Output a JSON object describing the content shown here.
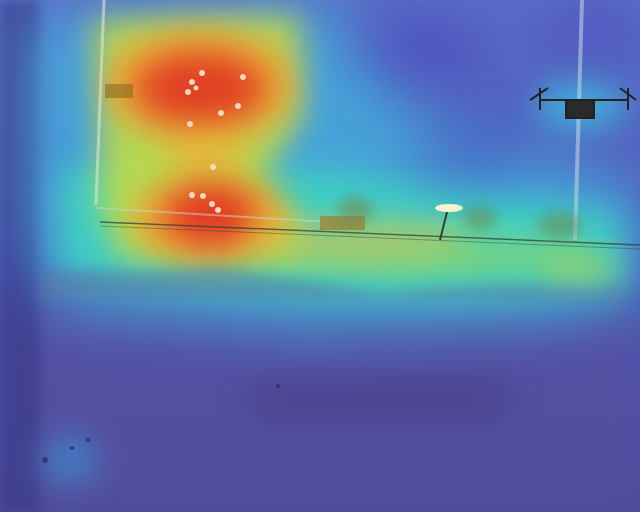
{
  "image": {
    "kind": "aerial-drone-photo-with-heatmap-overlay",
    "colormap": "jet",
    "colors": {
      "cold": "#3b3bd0",
      "cool": "#5ab0e8",
      "mid": "#3fd8c0",
      "warm": "#e8e040",
      "hot": "#e03020",
      "ground_dark": "#4a3f7a",
      "ground_light": "#8fa6b8"
    },
    "objects": [
      "paved-lot",
      "walking-people",
      "fence-line",
      "shrub-row",
      "utility-pole",
      "quadcopter-drone",
      "street-lamp"
    ],
    "people_count": 13
  }
}
